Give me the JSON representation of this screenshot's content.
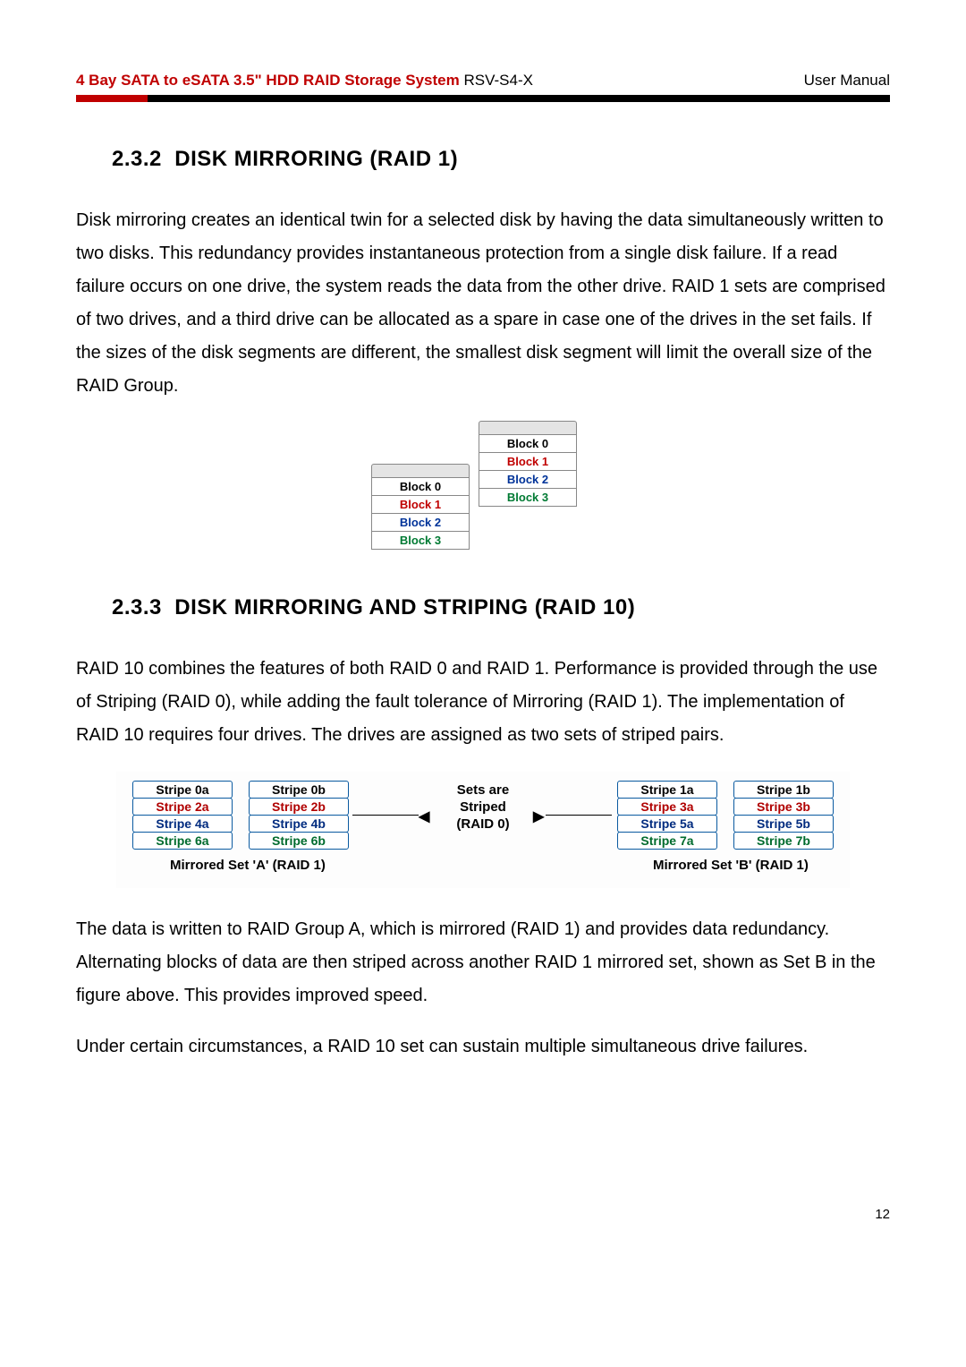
{
  "header": {
    "title_bold": "4 Bay SATA to eSATA 3.5\" HDD RAID Storage System",
    "model": " RSV-S4-X",
    "right": "User Manual"
  },
  "section1": {
    "number": "2.3.2",
    "title": "DISK MIRRORING (RAID 1)",
    "para": "Disk mirroring creates an identical twin for a selected disk by having the data simultaneously written to two disks. This redundancy provides instantaneous protection from a single disk failure. If a read failure occurs on one drive, the system reads the data from the other drive. RAID 1 sets are comprised of two drives, and a third drive can be allocated as a spare in case one of the drives in the set fails. If the sizes of the disk segments are different, the smallest disk segment will limit the overall size of the RAID Group."
  },
  "raid1_diagram": {
    "stackA": [
      {
        "label": "Block 0",
        "color": "c-black"
      },
      {
        "label": "Block 1",
        "color": "c-red"
      },
      {
        "label": "Block 2",
        "color": "c-blue"
      },
      {
        "label": "Block 3",
        "color": "c-green"
      }
    ],
    "stackB": [
      {
        "label": "Block 0",
        "color": "c-black"
      },
      {
        "label": "Block 1",
        "color": "c-red"
      },
      {
        "label": "Block 2",
        "color": "c-blue"
      },
      {
        "label": "Block 3",
        "color": "c-green"
      }
    ]
  },
  "section2": {
    "number": "2.3.3",
    "title": "DISK MIRRORING AND STRIPING (RAID 10)",
    "para1": "RAID 10 combines the features of both RAID 0 and RAID 1. Performance is provided through the use of Striping (RAID 0), while adding the fault tolerance of Mirroring (RAID 1). The implementation of RAID 10 requires four drives. The drives are assigned as two sets of striped pairs.",
    "para2": "The data is written to RAID Group A, which is mirrored (RAID 1) and provides data redundancy. Alternating blocks of data are then striped across another RAID 1 mirrored set, shown as Set B in the figure above. This provides improved speed.",
    "para3": "Under certain circumstances, a RAID 10 set can sustain multiple simultaneous drive failures."
  },
  "raid10_diagram": {
    "center_label_l1": "Sets are",
    "center_label_l2": "Striped",
    "center_label_l3": "(RAID 0)",
    "mirror_a": "Mirrored Set 'A' (RAID 1)",
    "mirror_b": "Mirrored Set 'B' (RAID 1)",
    "col1": [
      {
        "label": "Stripe 0a",
        "color": "mc-black"
      },
      {
        "label": "Stripe 2a",
        "color": "mc-red"
      },
      {
        "label": "Stripe 4a",
        "color": "mc-blue"
      },
      {
        "label": "Stripe 6a",
        "color": "mc-green"
      }
    ],
    "col2": [
      {
        "label": "Stripe 0b",
        "color": "mc-black"
      },
      {
        "label": "Stripe 2b",
        "color": "mc-red"
      },
      {
        "label": "Stripe 4b",
        "color": "mc-blue"
      },
      {
        "label": "Stripe 6b",
        "color": "mc-green"
      }
    ],
    "col3": [
      {
        "label": "Stripe 1a",
        "color": "mc-black"
      },
      {
        "label": "Stripe 3a",
        "color": "mc-red"
      },
      {
        "label": "Stripe 5a",
        "color": "mc-blue"
      },
      {
        "label": "Stripe 7a",
        "color": "mc-green"
      }
    ],
    "col4": [
      {
        "label": "Stripe 1b",
        "color": "mc-black"
      },
      {
        "label": "Stripe 3b",
        "color": "mc-red"
      },
      {
        "label": "Stripe 5b",
        "color": "mc-blue"
      },
      {
        "label": "Stripe 7b",
        "color": "mc-green"
      }
    ]
  },
  "page_number": "12"
}
